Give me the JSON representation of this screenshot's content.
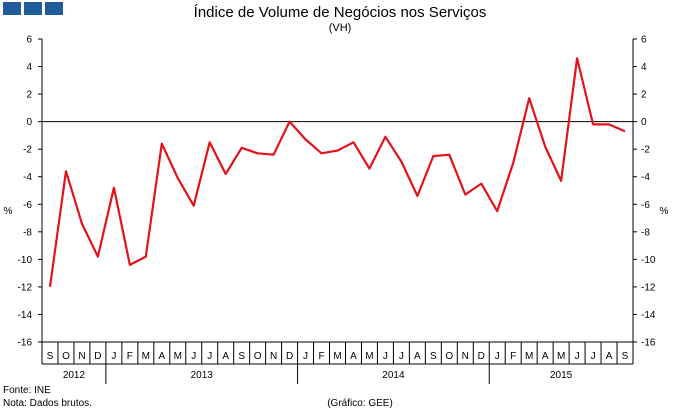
{
  "logo": {
    "blocks": [
      "logo-block-1",
      "logo-block-2",
      "logo-block-3"
    ],
    "color": "#1f5c99"
  },
  "chart_data": {
    "type": "line",
    "title": "Índice de Volume de Negócios nos Serviços",
    "subtitle": "(VH)",
    "ylabel": "%",
    "ylim": [
      -16,
      6
    ],
    "yticks": [
      6,
      4,
      2,
      0,
      -2,
      -4,
      -6,
      -8,
      -10,
      -12,
      -14,
      -16
    ],
    "grid": false,
    "line_color": "#e3121b",
    "months": [
      "S",
      "O",
      "N",
      "D",
      "J",
      "F",
      "M",
      "A",
      "M",
      "J",
      "J",
      "A",
      "S",
      "O",
      "N",
      "D",
      "J",
      "F",
      "M",
      "A",
      "M",
      "J",
      "J",
      "A",
      "S",
      "O",
      "N",
      "D",
      "J",
      "F",
      "M",
      "A",
      "M",
      "J",
      "J",
      "A",
      "S"
    ],
    "years": [
      {
        "label": "2012",
        "months": 4
      },
      {
        "label": "2013",
        "months": 12
      },
      {
        "label": "2014",
        "months": 12
      },
      {
        "label": "2015",
        "months": 9
      }
    ],
    "series": [
      {
        "name": "VH",
        "values": [
          -12.0,
          -3.6,
          -7.4,
          -9.8,
          -4.8,
          -10.4,
          -9.8,
          -1.6,
          -4.1,
          -6.1,
          -1.5,
          -3.8,
          -1.9,
          -2.3,
          -2.4,
          0.0,
          -1.3,
          -2.3,
          -2.1,
          -1.5,
          -3.4,
          -1.1,
          -2.9,
          -5.4,
          -2.5,
          -2.4,
          -5.3,
          -4.5,
          -6.5,
          -3.0,
          1.7,
          -1.8,
          -4.3,
          4.6,
          -0.2,
          -0.2,
          -0.7
        ]
      }
    ]
  },
  "footer": {
    "source": "Fonte: INE",
    "note": "Nota: Dados brutos.",
    "credit": "(Gráfico: GEE)"
  }
}
